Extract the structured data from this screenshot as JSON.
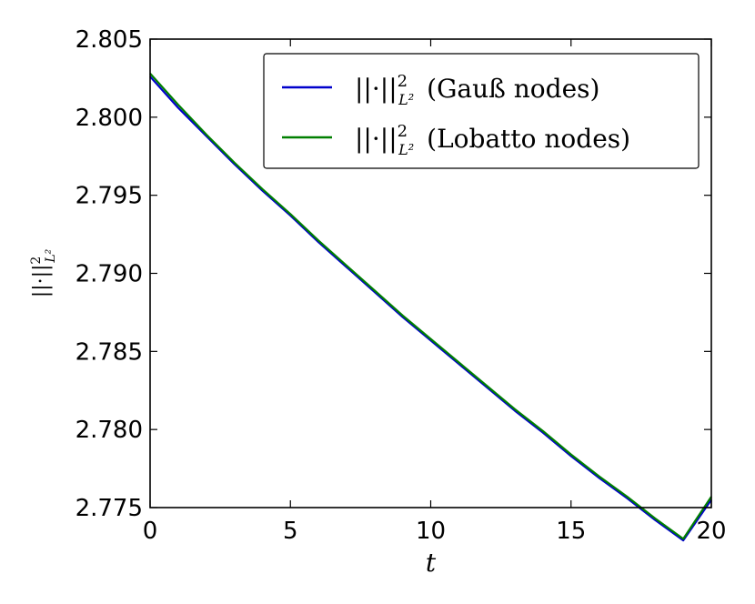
{
  "chart_data": {
    "type": "line",
    "xlabel": "t",
    "ylabel": "||·||²_{L²}",
    "xlim": [
      0,
      20
    ],
    "ylim": [
      2.775,
      2.805
    ],
    "x_ticks": [
      0,
      5,
      10,
      15,
      20
    ],
    "x_tick_labels": [
      "0",
      "5",
      "10",
      "15",
      "20"
    ],
    "y_ticks": [
      2.775,
      2.78,
      2.785,
      2.79,
      2.795,
      2.8,
      2.805
    ],
    "y_tick_labels": [
      "2.775",
      "2.780",
      "2.785",
      "2.790",
      "2.795",
      "2.800",
      "2.805"
    ],
    "grid": false,
    "legend_position": "top-right",
    "series": [
      {
        "name": "||·||²_{L²}  (Gauß nodes)",
        "color": "#0000cc",
        "x": [
          0,
          1,
          2,
          3,
          4,
          5,
          6,
          7,
          8,
          9,
          10,
          11,
          12,
          13,
          14,
          15,
          16,
          17,
          18,
          19,
          20
        ],
        "y": [
          2.8026,
          2.8006,
          2.7988,
          2.797,
          2.7953,
          2.7937,
          2.792,
          2.7904,
          2.7888,
          2.7872,
          2.7857,
          2.7842,
          2.7827,
          2.7812,
          2.7798,
          2.7783,
          2.7769,
          2.7756,
          2.7742,
          2.7729,
          2.7755
        ]
      },
      {
        "name": "||·||²_{L²}  (Lobatto nodes)",
        "color": "#007f00",
        "x": [
          0,
          1,
          2,
          3,
          4,
          5,
          6,
          7,
          8,
          9,
          10,
          11,
          12,
          13,
          14,
          15,
          16,
          17,
          18,
          19,
          20
        ],
        "y": [
          2.8028,
          2.8008,
          2.7989,
          2.7971,
          2.7954,
          2.7938,
          2.7921,
          2.7905,
          2.7889,
          2.7873,
          2.7858,
          2.7843,
          2.7828,
          2.7813,
          2.7799,
          2.7784,
          2.777,
          2.7757,
          2.7743,
          2.773,
          2.7757
        ]
      }
    ],
    "legend": {
      "entries": [
        {
          "base": "||·||",
          "sup": "2",
          "sub": "L²",
          "suffix": "(Gauß nodes)",
          "color": "#0000cc"
        },
        {
          "base": "||·||",
          "sup": "2",
          "sub": "L²",
          "suffix": "(Lobatto nodes)",
          "color": "#007f00"
        }
      ]
    }
  }
}
